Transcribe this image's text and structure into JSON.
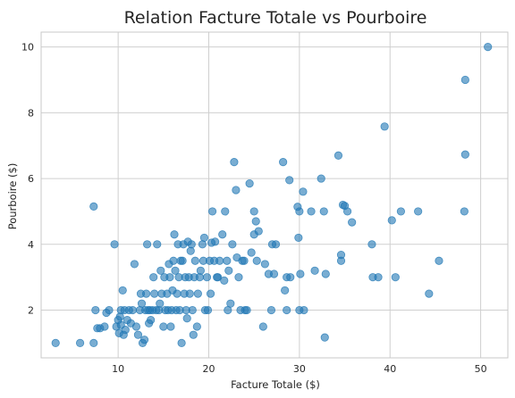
{
  "chart_data": {
    "type": "scatter",
    "title": "Relation Facture Totale vs Pourboire",
    "xlabel": "Facture Totale ($)",
    "ylabel": "Pourboire ($)",
    "xlim": [
      1.5,
      53.0
    ],
    "ylim": [
      0.55,
      10.45
    ],
    "xticks": [
      "10",
      "20",
      "30",
      "40",
      "50"
    ],
    "yticks": [
      "2",
      "4",
      "6",
      "8",
      "10"
    ],
    "grid": true,
    "color": "#1f77b4",
    "points": [
      [
        3.1,
        1.0
      ],
      [
        5.8,
        1.0
      ],
      [
        7.3,
        1.0
      ],
      [
        7.3,
        5.15
      ],
      [
        7.5,
        2.0
      ],
      [
        7.7,
        1.45
      ],
      [
        8.0,
        1.45
      ],
      [
        8.5,
        1.5
      ],
      [
        8.7,
        1.92
      ],
      [
        9.0,
        2.0
      ],
      [
        9.6,
        4.0
      ],
      [
        9.8,
        1.5
      ],
      [
        10.0,
        1.7
      ],
      [
        10.1,
        1.3
      ],
      [
        10.2,
        1.8
      ],
      [
        10.3,
        1.55
      ],
      [
        10.3,
        2.0
      ],
      [
        10.5,
        2.6
      ],
      [
        10.6,
        1.25
      ],
      [
        10.7,
        2.0
      ],
      [
        10.8,
        1.4
      ],
      [
        11.0,
        1.7
      ],
      [
        11.2,
        2.0
      ],
      [
        11.4,
        1.6
      ],
      [
        11.6,
        2.0
      ],
      [
        11.8,
        3.4
      ],
      [
        12.0,
        1.5
      ],
      [
        12.2,
        1.25
      ],
      [
        12.4,
        2.0
      ],
      [
        12.5,
        2.5
      ],
      [
        12.6,
        2.2
      ],
      [
        12.7,
        1.0
      ],
      [
        12.9,
        1.1
      ],
      [
        13.0,
        2.0
      ],
      [
        13.1,
        2.5
      ],
      [
        13.2,
        4.0
      ],
      [
        13.3,
        2.0
      ],
      [
        13.4,
        1.6
      ],
      [
        13.5,
        2.0
      ],
      [
        13.6,
        1.7
      ],
      [
        13.8,
        2.0
      ],
      [
        13.9,
        3.0
      ],
      [
        14.0,
        2.5
      ],
      [
        14.2,
        2.0
      ],
      [
        14.3,
        4.0
      ],
      [
        14.5,
        2.0
      ],
      [
        14.6,
        2.2
      ],
      [
        14.7,
        3.2
      ],
      [
        14.8,
        2.5
      ],
      [
        15.0,
        1.5
      ],
      [
        15.1,
        3.0
      ],
      [
        15.2,
        2.0
      ],
      [
        15.4,
        2.5
      ],
      [
        15.5,
        2.0
      ],
      [
        15.6,
        3.4
      ],
      [
        15.7,
        3.0
      ],
      [
        15.8,
        1.5
      ],
      [
        15.9,
        2.0
      ],
      [
        16.0,
        2.6
      ],
      [
        16.1,
        3.5
      ],
      [
        16.2,
        4.3
      ],
      [
        16.3,
        3.2
      ],
      [
        16.4,
        2.0
      ],
      [
        16.5,
        2.5
      ],
      [
        16.6,
        4.0
      ],
      [
        16.7,
        3.0
      ],
      [
        16.8,
        2.0
      ],
      [
        16.9,
        3.5
      ],
      [
        17.0,
        1.0
      ],
      [
        17.1,
        3.5
      ],
      [
        17.2,
        4.0
      ],
      [
        17.3,
        2.5
      ],
      [
        17.4,
        3.0
      ],
      [
        17.5,
        2.0
      ],
      [
        17.6,
        1.75
      ],
      [
        17.7,
        4.08
      ],
      [
        17.8,
        3.0
      ],
      [
        17.9,
        2.5
      ],
      [
        18.0,
        3.8
      ],
      [
        18.1,
        4.0
      ],
      [
        18.2,
        2.0
      ],
      [
        18.3,
        1.25
      ],
      [
        18.4,
        3.0
      ],
      [
        18.5,
        3.5
      ],
      [
        18.7,
        1.5
      ],
      [
        18.8,
        2.5
      ],
      [
        19.0,
        3.0
      ],
      [
        19.1,
        3.2
      ],
      [
        19.3,
        4.0
      ],
      [
        19.4,
        3.5
      ],
      [
        19.5,
        4.2
      ],
      [
        19.6,
        2.0
      ],
      [
        19.8,
        3.0
      ],
      [
        19.9,
        2.0
      ],
      [
        20.1,
        3.5
      ],
      [
        20.2,
        2.5
      ],
      [
        20.3,
        4.05
      ],
      [
        20.4,
        5.0
      ],
      [
        20.6,
        3.5
      ],
      [
        20.7,
        4.08
      ],
      [
        20.9,
        3.0
      ],
      [
        21.0,
        3.0
      ],
      [
        21.2,
        3.5
      ],
      [
        21.5,
        4.3
      ],
      [
        21.7,
        2.9
      ],
      [
        21.8,
        5.0
      ],
      [
        22.0,
        3.5
      ],
      [
        22.1,
        2.0
      ],
      [
        22.2,
        3.2
      ],
      [
        22.4,
        2.2
      ],
      [
        22.6,
        4.0
      ],
      [
        22.8,
        6.5
      ],
      [
        23.0,
        5.65
      ],
      [
        23.1,
        3.6
      ],
      [
        23.3,
        3.0
      ],
      [
        23.5,
        2.0
      ],
      [
        23.7,
        3.5
      ],
      [
        23.9,
        3.5
      ],
      [
        24.0,
        2.0
      ],
      [
        24.2,
        2.0
      ],
      [
        24.5,
        5.85
      ],
      [
        24.7,
        3.75
      ],
      [
        25.0,
        4.3
      ],
      [
        25.0,
        5.0
      ],
      [
        25.2,
        4.7
      ],
      [
        25.3,
        3.5
      ],
      [
        25.5,
        4.4
      ],
      [
        26.0,
        1.5
      ],
      [
        26.2,
        3.4
      ],
      [
        26.6,
        3.1
      ],
      [
        26.9,
        2.0
      ],
      [
        27.0,
        4.0
      ],
      [
        27.4,
        4.0
      ],
      [
        27.2,
        3.1
      ],
      [
        28.2,
        6.5
      ],
      [
        28.4,
        2.6
      ],
      [
        28.6,
        3.0
      ],
      [
        28.6,
        2.0
      ],
      [
        28.9,
        5.95
      ],
      [
        29.0,
        3.0
      ],
      [
        29.8,
        5.14
      ],
      [
        29.9,
        4.2
      ],
      [
        30.0,
        2.0
      ],
      [
        30.0,
        5.0
      ],
      [
        30.1,
        3.1
      ],
      [
        30.4,
        5.6
      ],
      [
        30.5,
        2.0
      ],
      [
        31.3,
        5.0
      ],
      [
        31.7,
        3.2
      ],
      [
        32.4,
        6.0
      ],
      [
        32.7,
        5.0
      ],
      [
        32.8,
        1.17
      ],
      [
        32.9,
        3.1
      ],
      [
        34.3,
        6.7
      ],
      [
        34.6,
        3.5
      ],
      [
        34.6,
        3.68
      ],
      [
        34.8,
        5.2
      ],
      [
        35.0,
        5.17
      ],
      [
        35.3,
        5.0
      ],
      [
        35.8,
        4.67
      ],
      [
        38.0,
        4.0
      ],
      [
        38.1,
        3.0
      ],
      [
        38.7,
        3.0
      ],
      [
        39.4,
        7.58
      ],
      [
        40.2,
        4.73
      ],
      [
        40.6,
        3.0
      ],
      [
        41.2,
        5.0
      ],
      [
        43.1,
        5.0
      ],
      [
        44.3,
        2.5
      ],
      [
        45.4,
        3.5
      ],
      [
        48.2,
        5.0
      ],
      [
        48.3,
        6.73
      ],
      [
        48.3,
        9.0
      ],
      [
        50.8,
        10.0
      ]
    ]
  }
}
